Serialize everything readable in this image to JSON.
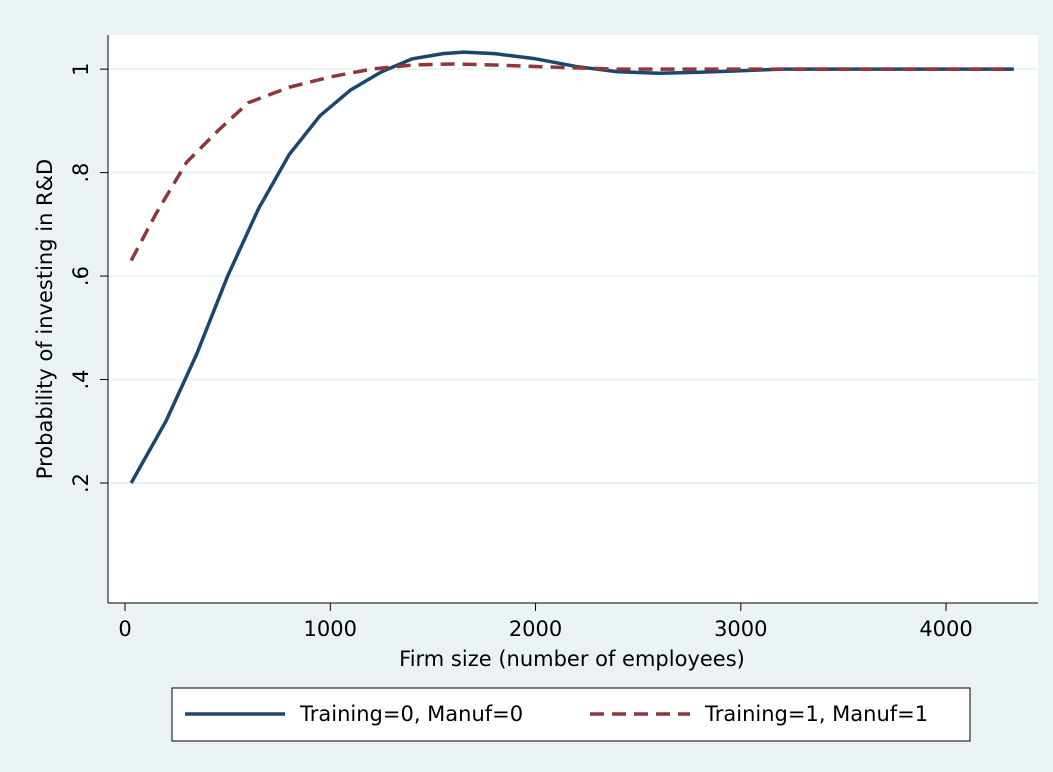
{
  "chart_data": {
    "type": "line",
    "xlabel": "Firm size (number of employees)",
    "ylabel": "Probability of investing in R&D",
    "xlim": [
      -83,
      4448
    ],
    "ylim": [
      -0.032,
      1.066
    ],
    "xticks": [
      0,
      1000,
      2000,
      3000,
      4000
    ],
    "yticks": [
      {
        "value": 0.2,
        "label": ".2"
      },
      {
        "value": 0.4,
        "label": ".4"
      },
      {
        "value": 0.6,
        "label": ".6"
      },
      {
        "value": 0.8,
        "label": ".8"
      },
      1
    ],
    "grid": true,
    "legend": "bottom",
    "series": [
      {
        "name": "Training=0, Manuf=0",
        "color": "#1a476f",
        "line_style": "solid",
        "x": [
          30,
          200,
          350,
          500,
          650,
          800,
          950,
          1100,
          1250,
          1400,
          1550,
          1650,
          1800,
          2000,
          2200,
          2400,
          2600,
          2800,
          3000,
          3200,
          3500,
          4000,
          4330
        ],
        "values": [
          0.2,
          0.32,
          0.45,
          0.6,
          0.73,
          0.835,
          0.91,
          0.96,
          0.995,
          1.02,
          1.03,
          1.033,
          1.03,
          1.02,
          1.005,
          0.995,
          0.992,
          0.994,
          0.997,
          1.0,
          1.0,
          1.0,
          1.0
        ]
      },
      {
        "name": "Training=1, Manuf=1",
        "color": "#90353b",
        "line_style": "dashed",
        "x": [
          30,
          150,
          300,
          450,
          600,
          800,
          1000,
          1200,
          1400,
          1600,
          1800,
          2000,
          2400,
          3000,
          4330
        ],
        "values": [
          0.63,
          0.72,
          0.82,
          0.88,
          0.935,
          0.965,
          0.985,
          1.0,
          1.008,
          1.01,
          1.008,
          1.005,
          1.0,
          1.0,
          1.0
        ]
      }
    ]
  }
}
